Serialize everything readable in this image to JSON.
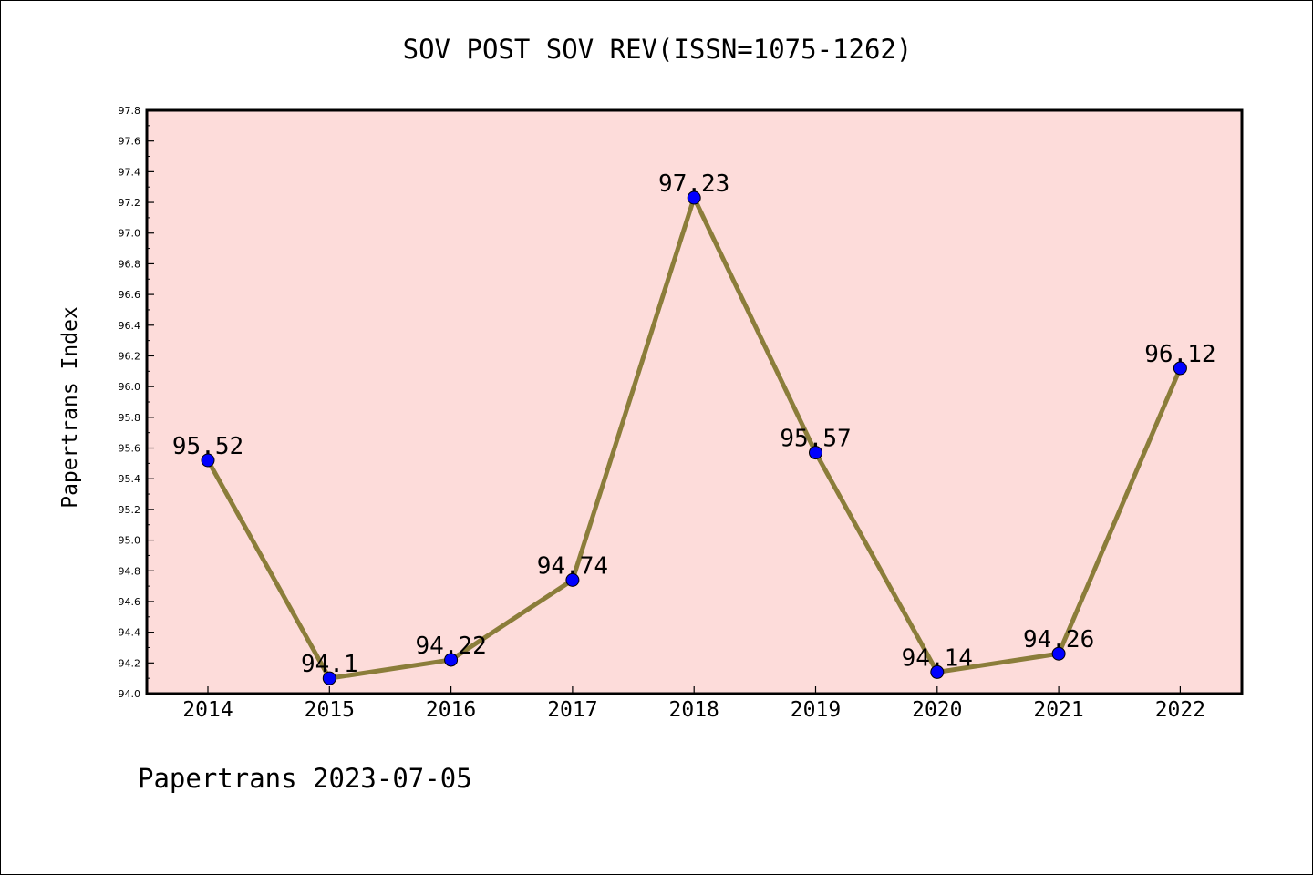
{
  "chart_data": {
    "type": "line",
    "title": "SOV POST SOV REV(ISSN=1075-1262)",
    "xlabel": "",
    "ylabel": "Papertrans Index",
    "categories": [
      "2014",
      "2015",
      "2016",
      "2017",
      "2018",
      "2019",
      "2020",
      "2021",
      "2022"
    ],
    "series": [
      {
        "values": [
          95.52,
          94.1,
          94.22,
          94.74,
          97.23,
          95.57,
          94.14,
          94.26,
          96.12
        ],
        "data_labels": [
          "95.52",
          "94.1",
          "94.22",
          "94.74",
          "97.23",
          "95.57",
          "94.14",
          "94.26",
          "96.12"
        ],
        "line_color": "#8b7d3a",
        "marker_color": "#0000ff"
      }
    ],
    "ylim": [
      94.0,
      97.8
    ],
    "yticks": [
      "94.0",
      "94.2",
      "94.4",
      "94.6",
      "94.8",
      "95.0",
      "95.2",
      "95.4",
      "95.6",
      "95.8",
      "96.0",
      "96.2",
      "96.4",
      "96.6",
      "96.8",
      "97.0",
      "97.2",
      "97.4",
      "97.6",
      "97.8"
    ],
    "grid": false,
    "plot_background": "#fddcda"
  },
  "footer": "Papertrans 2023-07-05"
}
